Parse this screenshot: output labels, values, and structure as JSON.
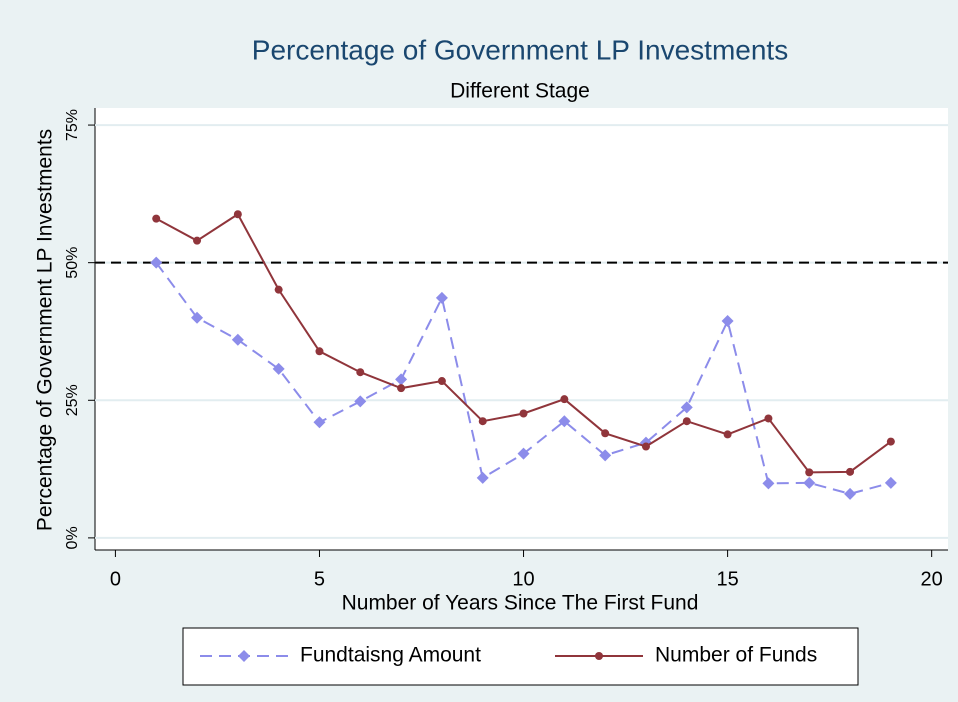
{
  "chart_data": {
    "type": "line",
    "title": "Percentage of Government LP Investments",
    "subtitle": "Different Stage",
    "x_label": "Number of Years Since The First Fund",
    "y_label": "Percentage of Government LP Investments",
    "x": [
      1,
      2,
      3,
      4,
      5,
      6,
      7,
      8,
      9,
      10,
      11,
      12,
      13,
      14,
      15,
      16,
      17,
      18,
      19
    ],
    "series": [
      {
        "name": "Fundtaisng Amount",
        "color": "#8c8cea",
        "dashed": true,
        "marker": "diamond",
        "values": [
          50,
          40,
          36,
          30.7,
          21,
          24.8,
          28.8,
          43.6,
          10.9,
          15.3,
          21.2,
          15,
          17.3,
          23.7,
          39.4,
          9.9,
          10,
          8,
          10
        ]
      },
      {
        "name": "Number of Funds",
        "color": "#90353b",
        "dashed": false,
        "marker": "circle",
        "values": [
          58,
          54,
          58.8,
          45.1,
          33.9,
          30.1,
          27.2,
          28.5,
          21.2,
          22.6,
          25.2,
          19,
          16.6,
          21.2,
          18.8,
          21.7,
          11.9,
          12,
          17.5
        ]
      }
    ],
    "reference_line": 50,
    "xlim": [
      -0.5,
      20.4
    ],
    "xticks": [
      0,
      5,
      10,
      15,
      20
    ],
    "ylim": [
      -2.2,
      78.1
    ],
    "yticks": [
      {
        "value": 0,
        "label": "0%"
      },
      {
        "value": 25,
        "label": "25%"
      },
      {
        "value": 50,
        "label": "50%"
      },
      {
        "value": 75,
        "label": "75%"
      }
    ],
    "grid": true
  }
}
